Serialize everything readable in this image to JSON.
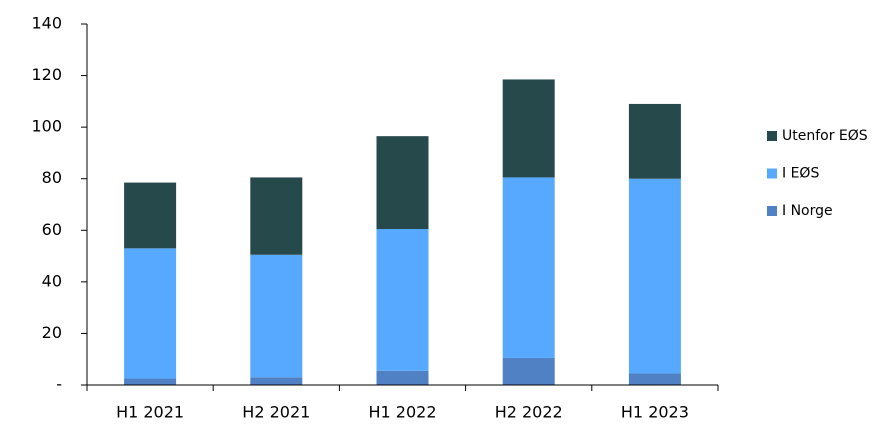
{
  "chart_data": {
    "type": "stacked-bar",
    "categories": [
      "H1 2021",
      "H2 2021",
      "H1 2022",
      "H2 2022",
      "H1 2023"
    ],
    "series": [
      {
        "name": "I Norge",
        "color": "#4f81c4",
        "values": [
          2.5,
          3,
          5.5,
          10.5,
          4.5
        ]
      },
      {
        "name": "I EØS",
        "color": "#57a9ff",
        "values": [
          50.5,
          47.5,
          55,
          70,
          75.5
        ]
      },
      {
        "name": "Utenfor EØS",
        "color": "#264a4b",
        "values": [
          25.5,
          30,
          36,
          38,
          29
        ]
      }
    ],
    "ylim": [
      0,
      140
    ],
    "yticks": [
      {
        "value": 0,
        "label": "-"
      },
      20,
      40,
      60,
      80,
      100,
      120,
      140
    ],
    "legend": "right"
  }
}
